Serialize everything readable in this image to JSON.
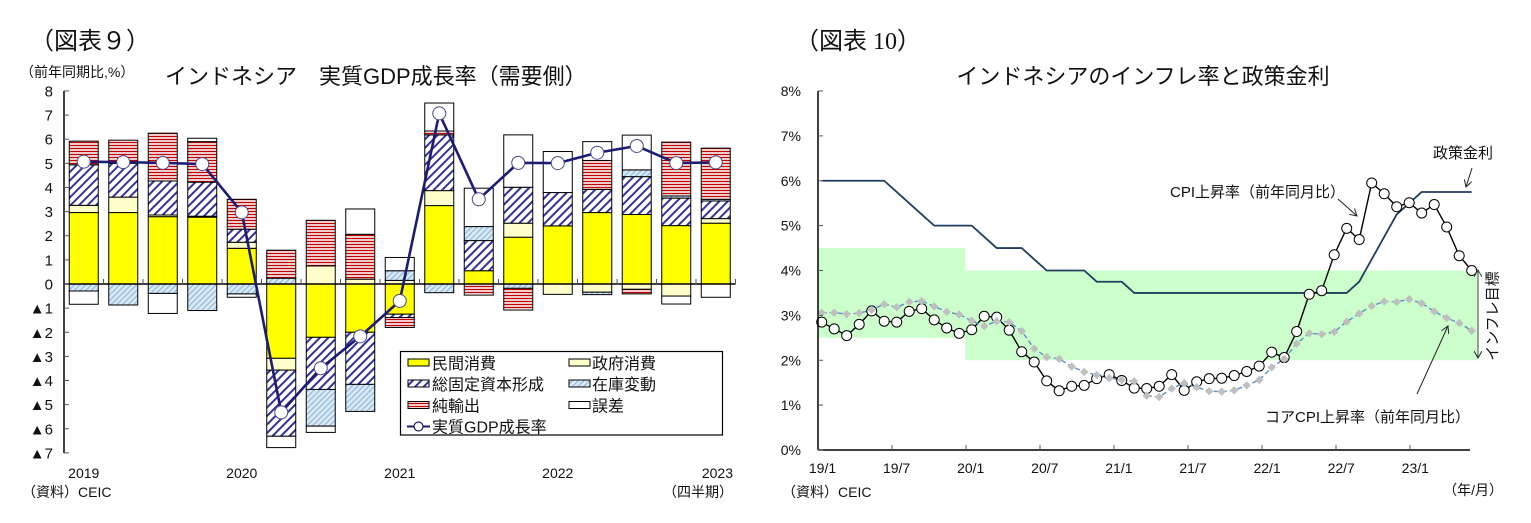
{
  "figure_left": {
    "label": "（図表９）",
    "source": "（資料）CEIC",
    "period_note": "（四半期）"
  },
  "figure_right": {
    "label": "（図表 10）",
    "source": "（資料）CEIC"
  },
  "chart_data": [
    {
      "type": "bar",
      "stacked": true,
      "title": "インドネシア　実質GDP成長率（需要側）",
      "xlabel": "",
      "ylabel": "（前年同期比,%）",
      "categories": [
        "2019Q1",
        "2019Q2",
        "2019Q3",
        "2019Q4",
        "2020Q1",
        "2020Q2",
        "2020Q3",
        "2020Q4",
        "2021Q1",
        "2021Q2",
        "2021Q3",
        "2021Q4",
        "2022Q1",
        "2022Q2",
        "2022Q3",
        "2022Q4",
        "2023Q1"
      ],
      "x_tick_labels": [
        {
          "index": 0,
          "label": "2019"
        },
        {
          "index": 4,
          "label": "2020"
        },
        {
          "index": 8,
          "label": "2021"
        },
        {
          "index": 12,
          "label": "2022"
        },
        {
          "index": 16,
          "label": "2023"
        }
      ],
      "y_ticks": [
        8,
        7,
        6,
        5,
        4,
        3,
        2,
        1,
        0,
        -1,
        -2,
        -3,
        -4,
        -5,
        -6,
        -7
      ],
      "y_tick_labels": [
        "8",
        "7",
        "6",
        "5",
        "4",
        "3",
        "2",
        "1",
        "0",
        "▲1",
        "▲2",
        "▲3",
        "▲4",
        "▲5",
        "▲6",
        "▲7"
      ],
      "ylim": [
        -7,
        8
      ],
      "grid": false,
      "legend": "inside bottom-right",
      "series": [
        {
          "key": "private",
          "name": "民間消費",
          "kind": "bar",
          "color": "#ffff00",
          "pattern": "solid",
          "values": [
            2.96,
            2.96,
            2.79,
            2.77,
            1.48,
            -3.08,
            -2.21,
            -2.0,
            -1.25,
            3.25,
            0.55,
            1.94,
            2.41,
            2.96,
            2.88,
            2.42,
            2.52
          ]
        },
        {
          "key": "government",
          "name": "政府消費",
          "kind": "bar",
          "color": "#ffffcc",
          "pattern": "solid",
          "values": [
            0.3,
            0.64,
            0.07,
            0.04,
            0.25,
            -0.49,
            0.75,
            0.2,
            0.15,
            0.62,
            0.0,
            0.58,
            -0.43,
            -0.34,
            -0.22,
            -0.5,
            0.19
          ]
        },
        {
          "key": "gfcf",
          "name": "総固定資本形成",
          "kind": "bar",
          "color": "#333399",
          "pattern": "diagonal-hatch",
          "values": [
            1.68,
            1.4,
            1.41,
            1.41,
            0.54,
            -2.74,
            -2.16,
            -2.16,
            -0.14,
            2.31,
            1.25,
            1.49,
            1.38,
            0.96,
            1.57,
            1.14,
            0.73
          ]
        },
        {
          "key": "inventory",
          "name": "在庫変動",
          "kind": "bar",
          "color": "#9dc3e6",
          "pattern": "light-diagonal",
          "values": [
            -0.29,
            -0.87,
            -0.39,
            -1.1,
            -0.41,
            0.24,
            -1.52,
            -1.12,
            0.4,
            -0.36,
            0.58,
            -0.18,
            0.0,
            -0.1,
            0.28,
            0.09,
            0.07
          ]
        },
        {
          "key": "net-exports",
          "name": "純輸出",
          "kind": "bar",
          "color": "#c00000",
          "pattern": "horizontal-stripes",
          "values": [
            0.98,
            0.96,
            1.98,
            1.68,
            1.24,
            1.16,
            1.89,
            1.86,
            -0.41,
            0.16,
            -0.46,
            -0.9,
            0.0,
            1.2,
            -0.19,
            2.23,
            2.12
          ]
        },
        {
          "key": "discrepancy",
          "name": "誤差",
          "kind": "bar",
          "color": "#ffffff",
          "pattern": "solid",
          "values": [
            -0.55,
            0.0,
            -0.83,
            0.14,
            -0.14,
            -0.47,
            -0.26,
            1.05,
            0.55,
            1.16,
            1.59,
            2.17,
            1.7,
            0.78,
            1.44,
            -0.33,
            -0.55
          ]
        },
        {
          "key": "gdp",
          "name": "実質GDP成長率",
          "kind": "line",
          "color": "#1c1c74",
          "marker": "circle",
          "values": [
            5.07,
            5.05,
            5.02,
            4.97,
            2.97,
            -5.32,
            -3.49,
            -2.17,
            -0.7,
            7.07,
            3.51,
            5.02,
            5.01,
            5.44,
            5.72,
            5.01,
            5.04
          ]
        }
      ]
    },
    {
      "type": "line",
      "title": "インドネシアのインフレ率と政策金利",
      "xlabel": "（年/月）",
      "ylabel": "",
      "months": [
        "19/1",
        "19/2",
        "19/3",
        "19/4",
        "19/5",
        "19/6",
        "19/7",
        "19/8",
        "19/9",
        "19/10",
        "19/11",
        "19/12",
        "20/1",
        "20/2",
        "20/3",
        "20/4",
        "20/5",
        "20/6",
        "20/7",
        "20/8",
        "20/9",
        "20/10",
        "20/11",
        "20/12",
        "21/1",
        "21/2",
        "21/3",
        "21/4",
        "21/5",
        "21/6",
        "21/7",
        "21/8",
        "21/9",
        "21/10",
        "21/11",
        "21/12",
        "22/1",
        "22/2",
        "22/3",
        "22/4",
        "22/5",
        "22/6",
        "22/7",
        "22/8",
        "22/9",
        "22/10",
        "22/11",
        "22/12",
        "23/1",
        "23/2",
        "23/3",
        "23/4",
        "23/5"
      ],
      "x_tick_labels": [
        "19/1",
        "19/7",
        "20/1",
        "20/7",
        "21/1",
        "21/7",
        "22/1",
        "22/7",
        "23/1"
      ],
      "y_ticks": [
        0,
        1,
        2,
        3,
        4,
        5,
        6,
        7,
        8
      ],
      "y_tick_labels": [
        "0%",
        "1%",
        "2%",
        "3%",
        "4%",
        "5%",
        "6%",
        "7%",
        "8%"
      ],
      "ylim": [
        0,
        8
      ],
      "grid": false,
      "legend": "none (direct labels)",
      "series": [
        {
          "key": "policy-rate",
          "name": "政策金利",
          "color": "#203e5f",
          "line_style": "solid",
          "marker": "none",
          "values": [
            6,
            6,
            6,
            6,
            6,
            6,
            5.75,
            5.5,
            5.25,
            5,
            5,
            5,
            5,
            4.75,
            4.5,
            4.5,
            4.5,
            4.25,
            4,
            4,
            4,
            4,
            3.75,
            3.75,
            3.75,
            3.5,
            3.5,
            3.5,
            3.5,
            3.5,
            3.5,
            3.5,
            3.5,
            3.5,
            3.5,
            3.5,
            3.5,
            3.5,
            3.5,
            3.5,
            3.5,
            3.5,
            3.5,
            3.75,
            4.25,
            4.75,
            5.25,
            5.5,
            5.75,
            5.75,
            5.75,
            5.75,
            5.75
          ]
        },
        {
          "key": "cpi",
          "name": "CPI上昇率（前年同月比）",
          "color": "#000000",
          "line_style": "solid",
          "marker": "circle",
          "values": [
            2.85,
            2.7,
            2.55,
            2.8,
            3.1,
            2.87,
            2.85,
            3.09,
            3.15,
            2.9,
            2.72,
            2.6,
            2.68,
            2.98,
            2.96,
            2.67,
            2.19,
            1.96,
            1.54,
            1.32,
            1.42,
            1.44,
            1.59,
            1.68,
            1.55,
            1.38,
            1.37,
            1.42,
            1.68,
            1.33,
            1.52,
            1.59,
            1.6,
            1.66,
            1.75,
            1.87,
            2.18,
            2.06,
            2.64,
            3.47,
            3.55,
            4.35,
            4.94,
            4.69,
            5.95,
            5.71,
            5.42,
            5.51,
            5.28,
            5.47,
            4.97,
            4.33,
            4.0
          ]
        },
        {
          "key": "core-cpi",
          "name": "コアCPI上昇率（前年同月比）",
          "color": "#5b8fc7",
          "marker_color": "#bfbfbf",
          "line_style": "dashed",
          "marker": "diamond",
          "values": [
            3.06,
            3.06,
            3.03,
            3.05,
            3.12,
            3.25,
            3.18,
            3.3,
            3.32,
            3.2,
            3.08,
            3.02,
            2.88,
            2.76,
            2.87,
            2.85,
            2.65,
            2.26,
            2.07,
            2.03,
            1.86,
            1.74,
            1.67,
            1.6,
            1.56,
            1.53,
            1.21,
            1.18,
            1.37,
            1.49,
            1.4,
            1.31,
            1.3,
            1.33,
            1.44,
            1.56,
            1.84,
            2.03,
            2.37,
            2.6,
            2.58,
            2.63,
            2.86,
            3.04,
            3.21,
            3.31,
            3.3,
            3.36,
            3.27,
            3.09,
            2.94,
            2.83,
            2.66
          ]
        }
      ],
      "bands": [
        {
          "name": "インフレ目標",
          "from": "19/1",
          "to": "19/12",
          "low": 2.5,
          "high": 4.5,
          "color": "#ccffcc"
        },
        {
          "name": "インフレ目標",
          "from": "20/1",
          "to": "23/5",
          "low": 2.0,
          "high": 4.0,
          "color": "#ccffcc"
        }
      ]
    }
  ]
}
